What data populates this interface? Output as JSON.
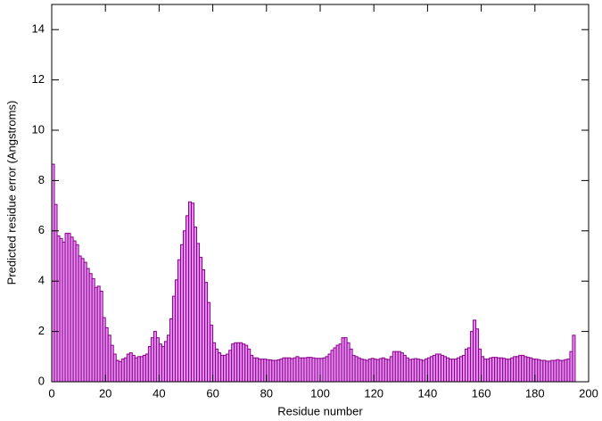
{
  "chart_data": {
    "type": "histogram",
    "xlabel": "Residue number",
    "ylabel": "Predicted residue error (Angstroms)",
    "bins": [
      0,
      1,
      2,
      3,
      4,
      5,
      6,
      7,
      8,
      9,
      10,
      11,
      12,
      13,
      14,
      15,
      16,
      17,
      18,
      19,
      20,
      21,
      22,
      23,
      24,
      25,
      26,
      27,
      28,
      29,
      30,
      31,
      32,
      33,
      34,
      35,
      36,
      37,
      38,
      39,
      40,
      41,
      42,
      43,
      44,
      45,
      46,
      47,
      48,
      49,
      50,
      51,
      52,
      53,
      54,
      55,
      56,
      57,
      58,
      59,
      60,
      61,
      62,
      63,
      64,
      65,
      66,
      67,
      68,
      69,
      70,
      71,
      72,
      73,
      74,
      75,
      76,
      77,
      78,
      79,
      80,
      81,
      82,
      83,
      84,
      85,
      86,
      87,
      88,
      89,
      90,
      91,
      92,
      93,
      94,
      95,
      96,
      97,
      98,
      99,
      100,
      101,
      102,
      103,
      104,
      105,
      106,
      107,
      108,
      109,
      110,
      111,
      112,
      113,
      114,
      115,
      116,
      117,
      118,
      119,
      120,
      121,
      122,
      123,
      124,
      125,
      126,
      127,
      128,
      129,
      130,
      131,
      132,
      133,
      134,
      135,
      136,
      137,
      138,
      139,
      140,
      141,
      142,
      143,
      144,
      145,
      146,
      147,
      148,
      149,
      150,
      151,
      152,
      153,
      154,
      155,
      156,
      157,
      158,
      159,
      160,
      161,
      162,
      163,
      164,
      165,
      166,
      167,
      168,
      169,
      170,
      171,
      172,
      173,
      174,
      175,
      176,
      177,
      178,
      179,
      180,
      181,
      182,
      183,
      184,
      185,
      186,
      187,
      188,
      189,
      190,
      191,
      192,
      193,
      194,
      195
    ],
    "values": [
      8.65,
      7.05,
      5.8,
      5.7,
      5.55,
      5.9,
      5.9,
      5.75,
      5.6,
      5.45,
      5.0,
      4.9,
      4.75,
      4.5,
      4.3,
      4.1,
      3.75,
      3.8,
      3.6,
      2.55,
      2.15,
      1.85,
      1.45,
      1.1,
      0.85,
      0.8,
      0.9,
      0.95,
      1.1,
      1.15,
      1.05,
      0.95,
      1.0,
      1.0,
      1.05,
      1.1,
      1.4,
      1.75,
      2.0,
      1.75,
      1.5,
      1.4,
      1.6,
      1.85,
      2.5,
      3.4,
      4.05,
      4.85,
      5.45,
      6.0,
      6.6,
      7.15,
      7.1,
      6.15,
      5.5,
      4.95,
      4.45,
      3.95,
      3.15,
      2.25,
      1.55,
      1.3,
      1.15,
      1.05,
      1.05,
      1.1,
      1.25,
      1.5,
      1.55,
      1.55,
      1.55,
      1.5,
      1.45,
      1.3,
      1.05,
      0.95,
      0.95,
      0.9,
      0.9,
      0.9,
      0.88,
      0.87,
      0.85,
      0.85,
      0.87,
      0.9,
      0.95,
      0.95,
      0.95,
      0.92,
      0.95,
      1.0,
      0.95,
      0.95,
      0.95,
      0.97,
      0.97,
      0.95,
      0.93,
      0.93,
      0.93,
      0.95,
      1.0,
      1.1,
      1.25,
      1.35,
      1.45,
      1.5,
      1.75,
      1.75,
      1.55,
      1.3,
      1.05,
      1.0,
      0.95,
      0.9,
      0.88,
      0.85,
      0.9,
      0.93,
      0.9,
      0.88,
      0.92,
      0.95,
      0.9,
      0.88,
      1.0,
      1.2,
      1.2,
      1.2,
      1.15,
      1.05,
      0.95,
      0.88,
      0.9,
      0.92,
      0.9,
      0.88,
      0.85,
      0.9,
      0.95,
      1.0,
      1.05,
      1.1,
      1.1,
      1.05,
      1.0,
      0.95,
      0.9,
      0.9,
      0.9,
      0.95,
      1.0,
      1.05,
      1.3,
      1.35,
      2.0,
      2.45,
      2.1,
      1.3,
      1.0,
      0.9,
      0.9,
      0.95,
      0.97,
      0.97,
      0.95,
      0.95,
      0.93,
      0.9,
      0.9,
      0.95,
      1.0,
      1.0,
      1.05,
      1.05,
      1.0,
      0.97,
      0.95,
      0.9,
      0.9,
      0.88,
      0.85,
      0.85,
      0.82,
      0.82,
      0.85,
      0.85,
      0.88,
      0.85,
      0.85,
      0.88,
      0.9,
      1.2,
      1.85
    ],
    "color": "#e58ff0",
    "edgecolor": "#8b008b",
    "xlim": [
      0,
      200
    ],
    "xticks": [
      0,
      20,
      40,
      60,
      80,
      100,
      120,
      140,
      160,
      180,
      200
    ],
    "ylim": [
      0,
      15
    ],
    "yticks": [
      0,
      2,
      4,
      6,
      8,
      10,
      12,
      14
    ],
    "grid": false
  }
}
